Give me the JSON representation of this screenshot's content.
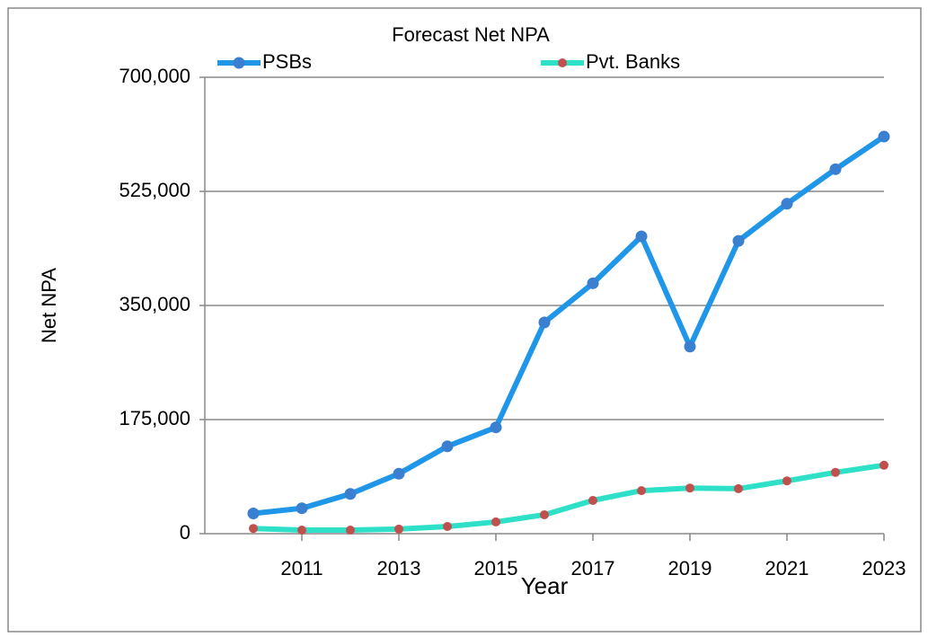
{
  "chart_data": {
    "type": "line",
    "title": "Forecast Net NPA",
    "x_label": "Year",
    "y_label": "Net NPA",
    "x": [
      2010,
      2011,
      2012,
      2013,
      2014,
      2015,
      2016,
      2017,
      2018,
      2019,
      2020,
      2021,
      2022,
      2023
    ],
    "series": [
      {
        "name": "PSBs",
        "color": "#1f96e8",
        "marker_color": "#3a7fd0",
        "values": [
          31000,
          39000,
          61000,
          92000,
          134000,
          163000,
          324000,
          384000,
          456000,
          287000,
          449000,
          506000,
          559000,
          609000
        ]
      },
      {
        "name": "Pvt. Banks",
        "color": "#2fe0c8",
        "marker_color": "#c0504d",
        "values": [
          8000,
          5500,
          5500,
          7000,
          11000,
          18000,
          29000,
          51000,
          66000,
          70000,
          69000,
          81000,
          94000,
          105000
        ]
      }
    ],
    "xlim": [
      2009,
      2023
    ],
    "xticks": [
      2011,
      2013,
      2015,
      2017,
      2019,
      2021,
      2023
    ],
    "ylim": [
      0,
      700000
    ],
    "yticks": [
      0,
      {
        "value": 175000,
        "label": "175,000"
      },
      {
        "value": 350000,
        "label": "350,000"
      },
      {
        "value": 525000,
        "label": "525,000"
      },
      {
        "value": 700000,
        "label": "700,000"
      }
    ],
    "grid": true,
    "legend": "top"
  }
}
